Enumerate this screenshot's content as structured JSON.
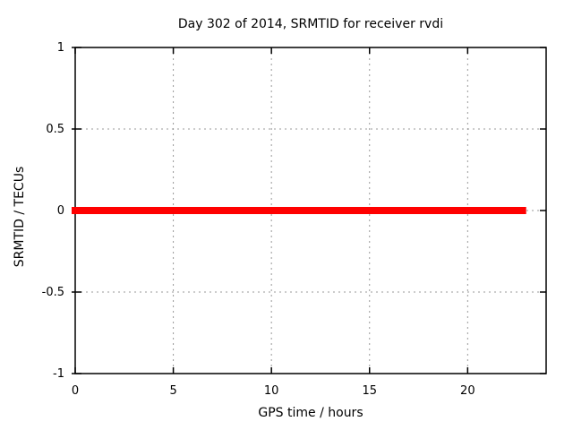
{
  "chart_data": {
    "type": "line",
    "title": "Day 302 of 2014, SRMTID for receiver rvdi",
    "xlabel": "GPS time / hours",
    "ylabel": "SRMTID / TECUs",
    "xlim": [
      0,
      24
    ],
    "ylim": [
      -1,
      1
    ],
    "xticks": [
      0,
      5,
      10,
      15,
      20
    ],
    "yticks": [
      -1,
      -0.5,
      0,
      0.5,
      1
    ],
    "grid": true,
    "grid_style": "dashed",
    "legend_position": "none",
    "series": [
      {
        "name": "SRMTID",
        "color": "#ff0000",
        "linewidth": 8,
        "x": [
          0,
          22.8
        ],
        "y": [
          0,
          0
        ]
      }
    ]
  },
  "colors": {
    "background": "#ffffff",
    "axis": "#000000",
    "grid": "#999999",
    "text": "#000000"
  }
}
